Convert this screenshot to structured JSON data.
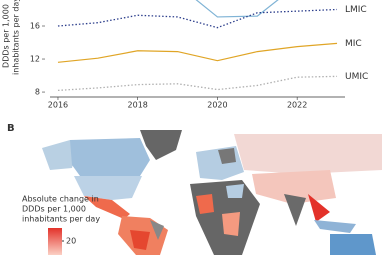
{
  "chart_data": {
    "type": "line",
    "y_label": [
      "DDDs per 1,000",
      "inhabitants per day"
    ],
    "x": [
      2016,
      2017,
      2018,
      2019,
      2020,
      2021,
      2022,
      2023
    ],
    "xlim": [
      2015.8,
      2023.2
    ],
    "xticks": [
      2016,
      2018,
      2020,
      2022
    ],
    "ylim": [
      7.4,
      19.15
    ],
    "yticks": [
      8,
      12,
      16
    ],
    "series": [
      {
        "color": "#7fb3d5",
        "style": "solid",
        "values": [
          null,
          null,
          null,
          21,
          17.1,
          17.2,
          21,
          null
        ]
      },
      {
        "name": "LMIC",
        "color": "#2c3e8c",
        "style": "dotted",
        "values": [
          16.0,
          16.4,
          17.3,
          17.1,
          15.8,
          17.6,
          17.8,
          18.0
        ]
      },
      {
        "name": "MIC",
        "color": "#e0a526",
        "style": "solid",
        "values": [
          11.6,
          12.1,
          13.0,
          12.9,
          11.8,
          12.9,
          13.5,
          13.9
        ]
      },
      {
        "name": "UMIC",
        "color": "#b0b0b0",
        "style": "dotted",
        "values": [
          8.2,
          8.5,
          8.9,
          9.0,
          8.3,
          8.8,
          9.8,
          9.9
        ]
      }
    ]
  },
  "panel_b": {
    "label": "B",
    "legend_title": [
      "Absolute change in",
      "DDDs per 1,000",
      "inhabitants per day"
    ],
    "legend_ticks": [
      20
    ]
  }
}
